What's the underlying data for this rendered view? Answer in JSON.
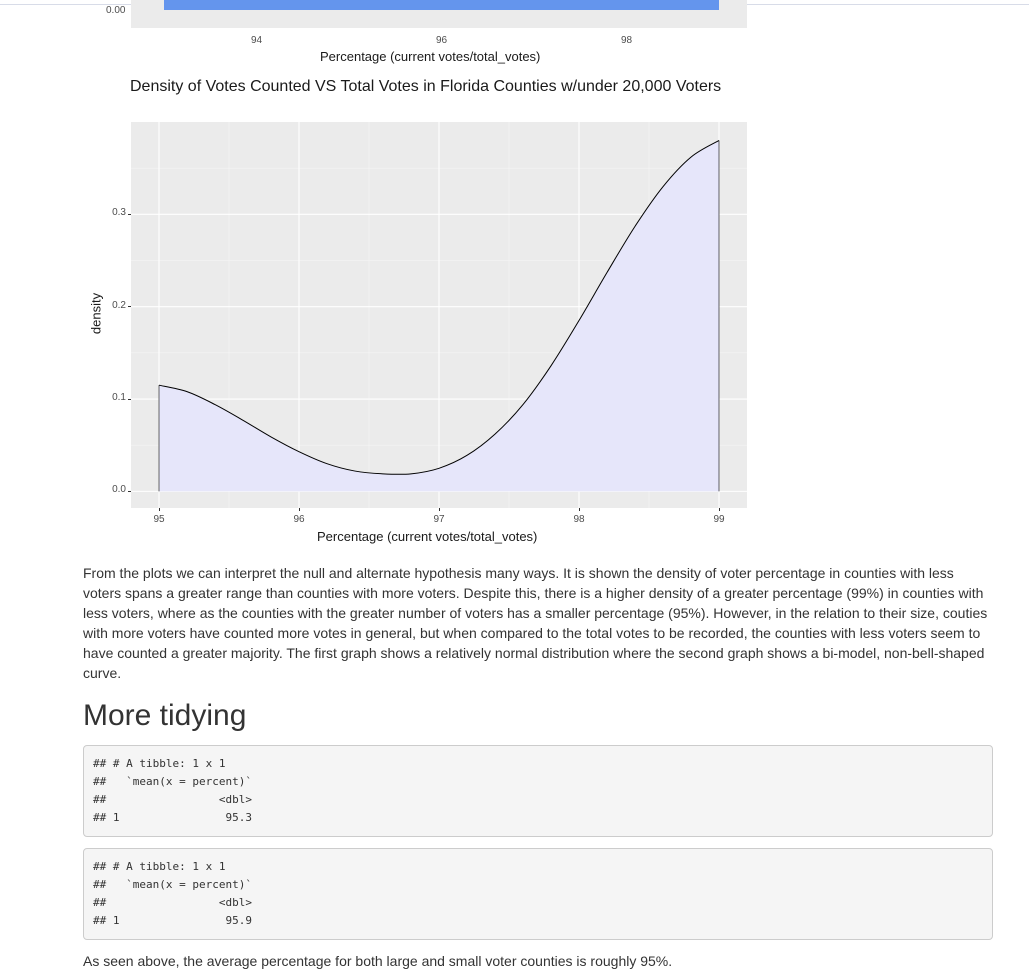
{
  "previous_chart": {
    "y_tick": "0.00",
    "x_ticks": [
      "94",
      "96",
      "98"
    ],
    "xlabel": "Percentage (current votes/total_votes)"
  },
  "colors": {
    "panel_bg": "#ebebeb",
    "grid_major": "#ffffff",
    "grid_minor": "#f5f5f5",
    "density_fill": "#e6e6fa",
    "density_line": "#000000",
    "prev_bar": "#6495ed"
  },
  "chart_data": {
    "type": "area",
    "title": "Density of Votes Counted VS Total Votes in Florida Counties w/under 20,000 Voters",
    "xlabel": "Percentage (current votes/total_votes)",
    "ylabel": "density",
    "xlim": [
      94.8,
      99.2
    ],
    "ylim": [
      -0.018,
      0.4
    ],
    "x_ticks": [
      95,
      96,
      97,
      98,
      99
    ],
    "y_ticks": [
      0.0,
      0.1,
      0.2,
      0.3
    ],
    "y_tick_labels": [
      "0.0",
      "0.1",
      "0.2",
      "0.3"
    ],
    "grid": true,
    "series": [
      {
        "x": [
          95.0,
          95.2,
          95.4,
          95.6,
          95.8,
          96.0,
          96.2,
          96.4,
          96.6,
          96.8,
          97.0,
          97.2,
          97.4,
          97.6,
          97.8,
          98.0,
          98.2,
          98.4,
          98.6,
          98.8,
          99.0
        ],
        "y": [
          0.115,
          0.108,
          0.094,
          0.077,
          0.059,
          0.043,
          0.03,
          0.022,
          0.019,
          0.019,
          0.025,
          0.039,
          0.062,
          0.094,
          0.136,
          0.185,
          0.237,
          0.287,
          0.33,
          0.362,
          0.38
        ]
      }
    ]
  },
  "paragraph1": "From the plots we can interpret the null and alternate hypothesis many ways. It is shown the density of voter percentage in counties with less voters spans a greater range than counties with more voters. Despite this, there is a higher density of a greater percentage (99%) in counties with less voters, where as the counties with the greater number of voters has a smaller percentage (95%). However, in the relation to their size, couties with more voters have counted more votes in general, but when compared to the total votes to be recorded, the counties with less voters seem to have counted a greater majority. The first graph shows a relatively normal distribution where the second graph shows a bi-model, non-bell-shaped curve.",
  "heading": "More tidying",
  "code_block_1": "## # A tibble: 1 x 1\n##   `mean(x = percent)`\n##                 <dbl>\n## 1                95.3",
  "code_block_2": "## # A tibble: 1 x 1\n##   `mean(x = percent)`\n##                 <dbl>\n## 1                95.9",
  "paragraph2": "As seen above, the average percentage for both large and small voter counties is roughly 95%."
}
